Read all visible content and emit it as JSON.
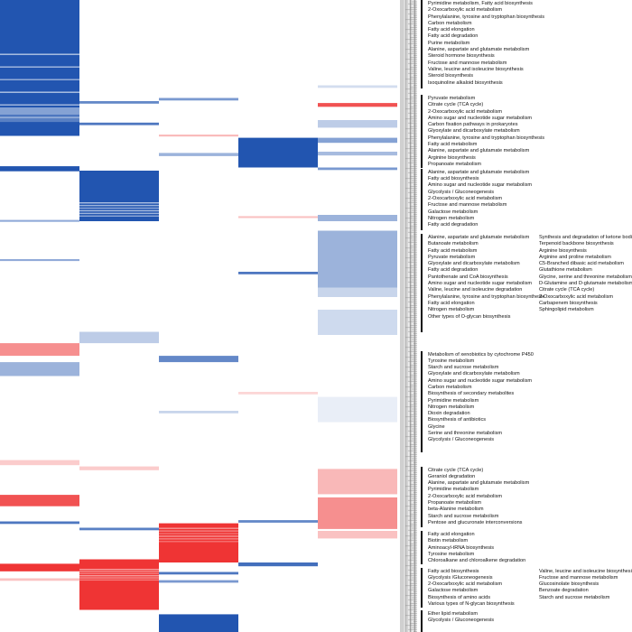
{
  "chart_data": {
    "type": "heatmap",
    "n_columns": 5,
    "colors": {
      "negative_dark": "#2255b0",
      "negative_light": "#9aa3d9",
      "positive_dark": "#ef3434",
      "positive_light": "#f7b6b6",
      "neutral": "#ffffff",
      "dendrogram": "#888888",
      "bracket": "#111111"
    },
    "column_blocks": [
      {
        "col": 0,
        "from": 0.0,
        "to": 0.215,
        "value": -1.0
      },
      {
        "col": 1,
        "from": 0.27,
        "to": 0.35,
        "value": -1.0
      },
      {
        "col": 2,
        "from": 0.828,
        "to": 0.89,
        "value": 1.0
      },
      {
        "col": 3,
        "from": 0.218,
        "to": 0.265,
        "value": -1.0
      },
      {
        "col": 1,
        "from": 0.885,
        "to": 0.965,
        "value": 1.0
      },
      {
        "col": 2,
        "from": 0.972,
        "to": 1.0,
        "value": -1.0
      }
    ],
    "stripes": [
      {
        "col": 0,
        "at": 0.17,
        "h": 0.012,
        "value": -0.55
      },
      {
        "col": 0,
        "at": 0.183,
        "h": 0.01,
        "value": -0.75
      },
      {
        "col": 0,
        "at": 0.263,
        "h": 0.008,
        "value": -1.0
      },
      {
        "col": 0,
        "at": 0.348,
        "h": 0.003,
        "value": -0.5
      },
      {
        "col": 0,
        "at": 0.41,
        "h": 0.003,
        "value": -0.5
      },
      {
        "col": 0,
        "at": 0.543,
        "h": 0.02,
        "value": 0.55
      },
      {
        "col": 0,
        "at": 0.573,
        "h": 0.022,
        "value": -0.45
      },
      {
        "col": 0,
        "at": 0.728,
        "h": 0.008,
        "value": 0.25
      },
      {
        "col": 0,
        "at": 0.783,
        "h": 0.018,
        "value": 0.85
      },
      {
        "col": 0,
        "at": 0.825,
        "h": 0.004,
        "value": -0.8
      },
      {
        "col": 0,
        "at": 0.892,
        "h": 0.012,
        "value": 1.0
      },
      {
        "col": 0,
        "at": 0.915,
        "h": 0.004,
        "value": 0.3
      },
      {
        "col": 1,
        "at": 0.16,
        "h": 0.004,
        "value": -0.7
      },
      {
        "col": 1,
        "at": 0.194,
        "h": 0.004,
        "value": -0.8
      },
      {
        "col": 1,
        "at": 0.525,
        "h": 0.018,
        "value": -0.3
      },
      {
        "col": 1,
        "at": 0.738,
        "h": 0.006,
        "value": 0.25
      },
      {
        "col": 1,
        "at": 0.835,
        "h": 0.004,
        "value": -0.75
      },
      {
        "col": 2,
        "at": 0.155,
        "h": 0.004,
        "value": -0.6
      },
      {
        "col": 2,
        "at": 0.213,
        "h": 0.003,
        "value": 0.35
      },
      {
        "col": 2,
        "at": 0.242,
        "h": 0.005,
        "value": -0.45
      },
      {
        "col": 2,
        "at": 0.563,
        "h": 0.01,
        "value": -0.7
      },
      {
        "col": 2,
        "at": 0.65,
        "h": 0.004,
        "value": -0.25
      },
      {
        "col": 2,
        "at": 0.905,
        "h": 0.004,
        "value": -0.8
      },
      {
        "col": 2,
        "at": 0.918,
        "h": 0.004,
        "value": -0.6
      },
      {
        "col": 3,
        "at": 0.342,
        "h": 0.003,
        "value": 0.3
      },
      {
        "col": 3,
        "at": 0.43,
        "h": 0.004,
        "value": -0.8
      },
      {
        "col": 3,
        "at": 0.62,
        "h": 0.004,
        "value": 0.2
      },
      {
        "col": 3,
        "at": 0.823,
        "h": 0.004,
        "value": -0.7
      },
      {
        "col": 3,
        "at": 0.89,
        "h": 0.006,
        "value": -0.85
      },
      {
        "col": 4,
        "at": 0.135,
        "h": 0.004,
        "value": -0.2
      },
      {
        "col": 4,
        "at": 0.163,
        "h": 0.006,
        "value": 0.85
      },
      {
        "col": 4,
        "at": 0.19,
        "h": 0.012,
        "value": -0.3
      },
      {
        "col": 4,
        "at": 0.218,
        "h": 0.008,
        "value": -0.55
      },
      {
        "col": 4,
        "at": 0.24,
        "h": 0.006,
        "value": -0.4
      },
      {
        "col": 4,
        "at": 0.265,
        "h": 0.004,
        "value": -0.6
      },
      {
        "col": 4,
        "at": 0.34,
        "h": 0.01,
        "value": -0.45
      },
      {
        "col": 4,
        "at": 0.365,
        "h": 0.09,
        "value": -0.45
      },
      {
        "col": 4,
        "at": 0.455,
        "h": 0.015,
        "value": -0.25
      },
      {
        "col": 4,
        "at": 0.49,
        "h": 0.04,
        "value": -0.22
      },
      {
        "col": 4,
        "at": 0.628,
        "h": 0.04,
        "value": -0.1
      },
      {
        "col": 4,
        "at": 0.742,
        "h": 0.04,
        "value": 0.35
      },
      {
        "col": 4,
        "at": 0.787,
        "h": 0.05,
        "value": 0.55
      },
      {
        "col": 4,
        "at": 0.84,
        "h": 0.012,
        "value": 0.3
      }
    ],
    "label_groups": [
      {
        "bracket": [
          0.0,
          0.14
        ],
        "columns": [
          [
            "Pyrimidine metabolism, Fatty acid biosynthesis",
            "2-Oxocarboxylic acid metabolism",
            "Phenylalanine, tyrosine and tryptophan biosynthesis",
            "Carbon metabolism",
            "Fatty acid elongation",
            "Fatty acid degradation",
            "Purine metabolism",
            "Alanine, aspartate and glutamate metabolism",
            "Steroid hormone biosynthesis",
            "Fructose and mannose metabolism",
            "Valine, leucine and isoleucine biosynthesis",
            "Steroid biosynthesis",
            "Isoquinoline alkaloid biosynthesis"
          ]
        ]
      },
      {
        "bracket": [
          0.15,
          0.265
        ],
        "columns": [
          [
            "Pyruvate metabolism",
            "Citrate cycle (TCA cycle)",
            "2-Oxocarboxylic acid metabolism",
            "Amino sugar and nucleotide sugar metabolism",
            "Carbon fixation pathways in prokaryotes",
            "Glyoxylate and dicarboxylate metabolism",
            "Phenylalanine, tyrosine and tryptophan biosynthesis",
            "Fatty acid metabolism",
            "Alanine, aspartate and glutamate metabolism",
            "Arginine biosynthesis",
            "Propanoate metabolism"
          ]
        ]
      },
      {
        "bracket": [
          0.267,
          0.365
        ],
        "columns": [
          [
            "Alanine, aspartate and glutamate metabolism",
            "Fatty acid biosynthesis",
            "Amino sugar and nucleotide sugar metabolism",
            "Glycolysis / Gluconeogenesis",
            "2-Oxocarboxylic acid metabolism",
            "Fructose and mannose metabolism",
            "Galactose metabolism",
            "Nitrogen metabolism",
            "Fatty acid degradation"
          ]
        ]
      },
      {
        "bracket": [
          0.37,
          0.525
        ],
        "columns": [
          [
            "Alanine, aspartate and glutamate metabolism",
            "Butanoate metabolism",
            "Fatty acid metabolism",
            "Pyruvate metabolism",
            "Glyoxylate and dicarboxylate metabolism",
            "Fatty acid degradation",
            "Pantothenate and CoA biosynthesis",
            "Amino sugar and nucleotide sugar metabolism",
            "Valine, leucine and isoleucine degradation",
            "Phenylalanine, tyrosine and tryptophan biosynthesis",
            "Fatty acid elongation",
            "Nitrogen metabolism",
            "Other types of O-glycan biosynthesis"
          ],
          [
            "Synthesis and degradation of ketone bodies",
            "Terpenoid backbone biosynthesis",
            "Arginine biosynthesis",
            "Arginine and proline metabolism",
            "C5-Branched dibasic acid metabolism",
            "Glutathione metabolism",
            "Glycine, serine and threonine metabolism",
            "D-Glutamine and D-glutamate metabolism",
            "Citrate cycle (TCA cycle)",
            "2-Oxocarboxylic acid metabolism",
            "Carbapenem biosynthesis",
            "Sphingolipid metabolism"
          ]
        ]
      },
      {
        "bracket": [
          0.555,
          0.715
        ],
        "columns": [
          [
            "Metabolism of xenobiotics by cytochrome P450",
            "Tyrosine metabolism",
            "Starch and sucrose metabolism",
            "Glyoxylate and dicarboxylate metabolism",
            "Amino sugar and nucleotide sugar metabolism",
            "Carbon metabolism",
            "Biosynthesis of secondary metabolites",
            "Pyrimidine metabolism",
            "Nitrogen metabolism",
            "Dioxin degradation",
            "Biosynthesis of antibiotics",
            "Glycine",
            "Serine and threonine metabolism",
            "Glycolysis / Gluconeogenesis"
          ]
        ]
      },
      {
        "bracket": [
          0.738,
          0.835
        ],
        "columns": [
          [
            "Citrate cycle (TCA cycle)",
            "Geraniol degradation",
            "Alanine, aspartate and glutamate metabolism",
            "Pyrimidine metabolism",
            "2-Oxocarboxylic acid metabolism",
            "Propanoate metabolism",
            "beta-Alanine metabolism",
            "Starch and sucrose metabolism",
            "Pentose and glucuronate interconversions"
          ]
        ]
      },
      {
        "bracket": [
          0.84,
          0.893
        ],
        "columns": [
          [
            "Fatty acid elongation",
            "Biotin metabolism",
            "Aminoacyl-tRNA biosynthesis",
            "Tyrosine metabolism",
            "Chloroalkane and chloroalkene degradation"
          ]
        ]
      },
      {
        "bracket": [
          0.898,
          0.962
        ],
        "columns": [
          [
            "Fatty acid biosynthesis",
            "Glycolysis /Gluconeogenesis",
            "2-Oxocarboxylic acid metabolism",
            "Galactose metabolism",
            "Biosynthesis of amino acids",
            "Various types of N-glycan biosynthesis"
          ],
          [
            "Valine, leucine and isoleucine biosynthesis",
            "Fructose and mannose metabolism",
            "Glucosinolate biosynthesis",
            "Benzoate degradation",
            "Starch and sucrose metabolism"
          ]
        ]
      },
      {
        "bracket": [
          0.965,
          1.0
        ],
        "columns": [
          [
            "Ether lipid metabolism",
            "Glycolysis / Gluconeogenesis"
          ]
        ]
      }
    ]
  }
}
